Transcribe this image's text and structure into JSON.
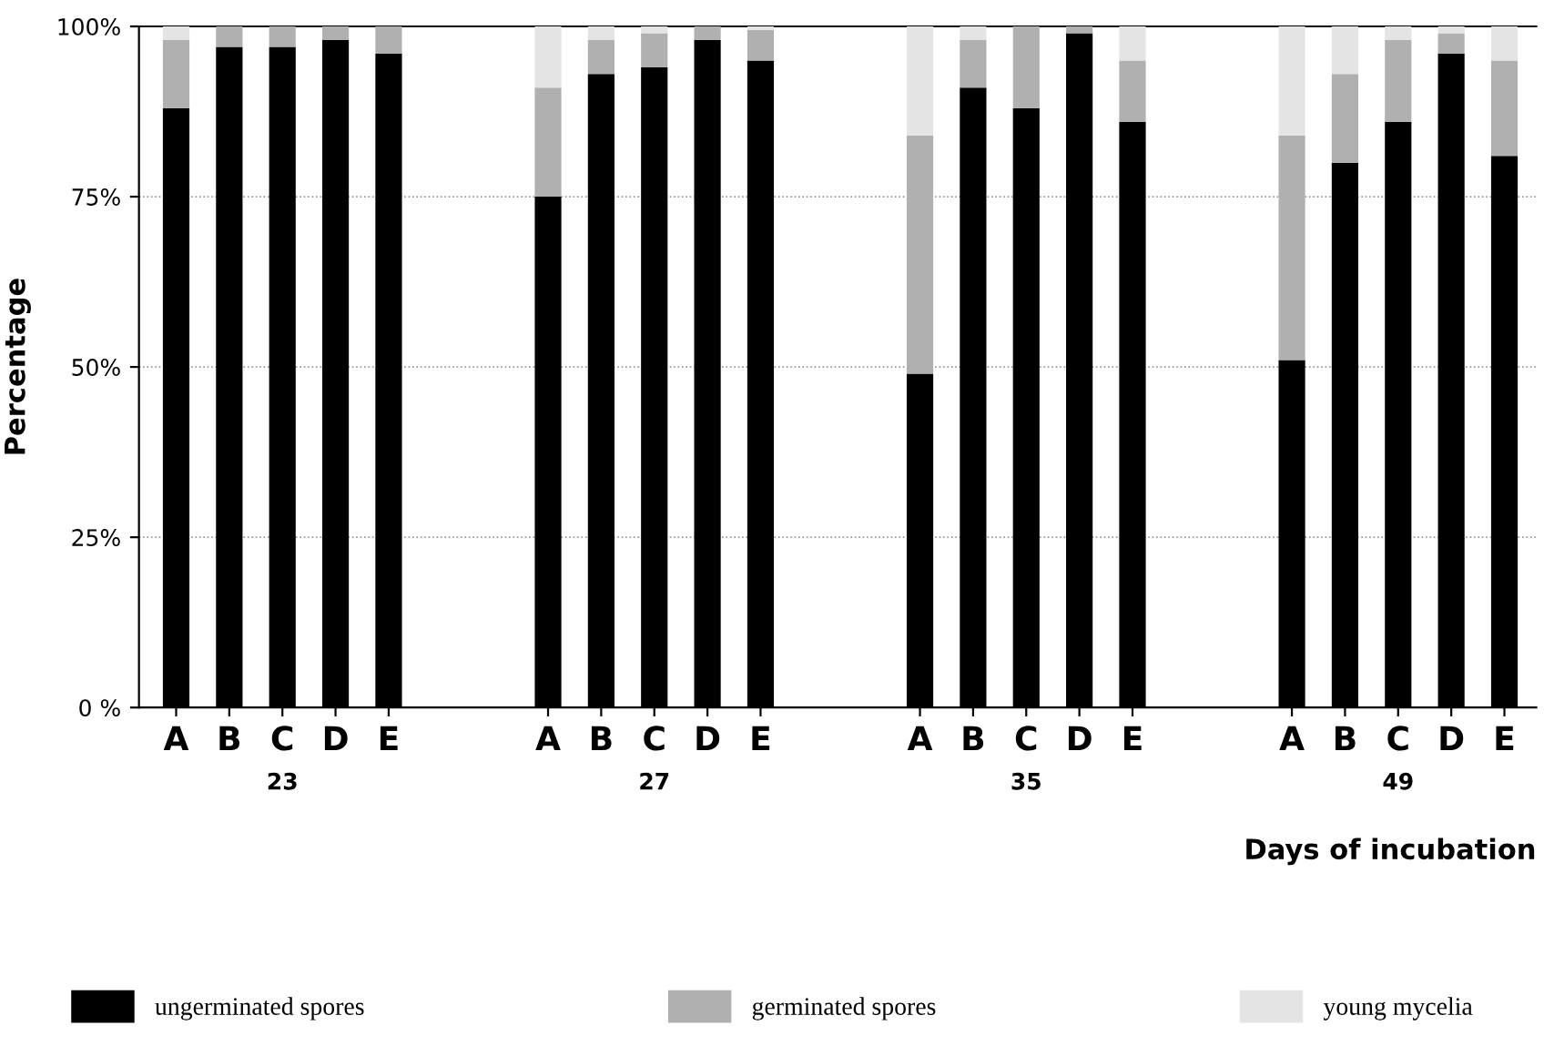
{
  "chart_data": {
    "type": "bar",
    "stacked": true,
    "ylabel": "Percentage",
    "xlabel": "Days of incubation",
    "categories": [
      "A",
      "B",
      "C",
      "D",
      "E",
      null,
      null,
      "A",
      "B",
      "C",
      "D",
      "E",
      null,
      null,
      "A",
      "B",
      "C",
      "D",
      "E",
      null,
      null,
      "A",
      "B",
      "C",
      "D",
      "E"
    ],
    "series": [
      {
        "name": "ungerminated spores",
        "color": "#000000",
        "values": [
          88,
          97,
          97,
          98,
          96,
          null,
          null,
          75,
          93,
          94,
          98,
          95,
          null,
          null,
          49,
          91,
          88,
          99,
          86,
          null,
          null,
          51,
          80,
          86,
          96,
          81
        ]
      },
      {
        "name": "germinated spores",
        "color": "#b0b0b0",
        "values": [
          10,
          3,
          3,
          2,
          4,
          null,
          null,
          16,
          5,
          5,
          2,
          4.5,
          null,
          null,
          35,
          7,
          12,
          1,
          9,
          null,
          null,
          33,
          13,
          12,
          3,
          14
        ]
      },
      {
        "name": "young mycelia",
        "color": "#e4e4e4",
        "values": [
          2,
          0,
          0,
          0,
          0,
          null,
          null,
          9,
          2,
          1,
          0,
          0.5,
          null,
          null,
          16,
          2,
          0,
          0,
          5,
          null,
          null,
          16,
          7,
          2,
          1,
          5
        ]
      }
    ],
    "annotations": [
      "23",
      "27",
      "35",
      "49"
    ],
    "ylim": [
      0,
      100
    ],
    "yticks": [
      {
        "value": 0,
        "label": "0 %"
      },
      {
        "value": 25,
        "label": "25%"
      },
      {
        "value": 50,
        "label": "50%"
      },
      {
        "value": 75,
        "label": "75%"
      },
      {
        "value": 100,
        "label": "100%"
      }
    ],
    "grid": "y",
    "legend": "bottom"
  }
}
